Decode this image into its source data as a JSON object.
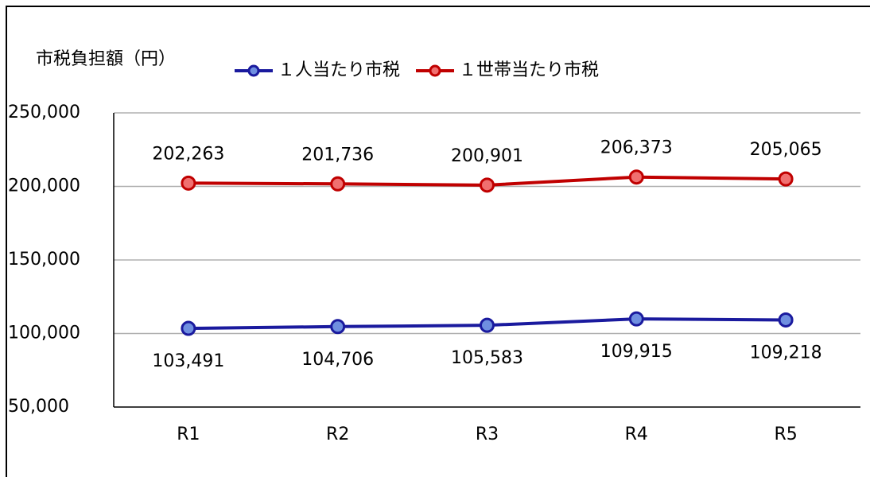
{
  "chart_data": {
    "type": "line",
    "y_axis_label": "市税負担額（円）",
    "categories": [
      "R1",
      "R2",
      "R3",
      "R4",
      "R5"
    ],
    "series": [
      {
        "name": "１人当たり市税",
        "color": "#1a1a9e",
        "marker_color": "#6f8fe0",
        "values": [
          103491,
          104706,
          105583,
          109915,
          109218
        ],
        "value_labels": [
          "103,491",
          "104,706",
          "105,583",
          "109,915",
          "109,218"
        ]
      },
      {
        "name": "１世帯当たり市税",
        "color": "#c00000",
        "marker_color": "#f07070",
        "values": [
          202263,
          201736,
          200901,
          206373,
          205065
        ],
        "value_labels": [
          "202,263",
          "201,736",
          "200,901",
          "206,373",
          "205,065"
        ]
      }
    ],
    "ylim": [
      50000,
      250000
    ],
    "yticks": [
      {
        "value": 50000,
        "label": "50,000"
      },
      {
        "value": 100000,
        "label": "100,000"
      },
      {
        "value": 150000,
        "label": "150,000"
      },
      {
        "value": 200000,
        "label": "200,000"
      },
      {
        "value": 250000,
        "label": "250,000"
      }
    ],
    "grid": true,
    "legend": "top"
  }
}
